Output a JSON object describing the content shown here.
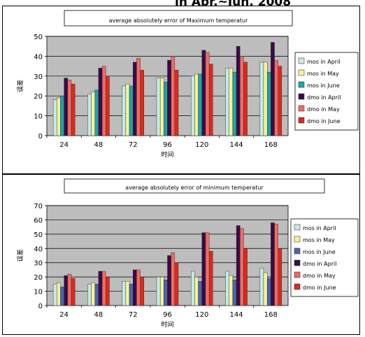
{
  "header": {
    "partial_caption": "in Apr.~Jun. 2008"
  },
  "legend_swatch_colors": [
    "#c7e8e4",
    "#f6f29a",
    "#1fa4a6",
    "#3a0a49",
    "#ef6b61",
    "#dc2a1c"
  ],
  "legend_swatch_colors_bottom": [
    "#c7e8e4",
    "#f6f29a",
    "#4b65ad",
    "#3a0a49",
    "#ef6b61",
    "#dc2a1c"
  ],
  "chart_data": [
    {
      "type": "bar",
      "title": "average absolutely error of Maximum temperatur",
      "xlabel": "时间",
      "ylabel": "误差",
      "ylim": [
        0,
        50
      ],
      "yticks": [
        "0",
        "10",
        "20",
        "30",
        "40",
        "50"
      ],
      "categories": [
        "24",
        "48",
        "72",
        "96",
        "120",
        "144",
        "168"
      ],
      "plot_background": "#bdbdbd",
      "grid": true,
      "legend_position": "right",
      "series": [
        {
          "name": "mos in April",
          "values": [
            18,
            21,
            25,
            29,
            30,
            34,
            37
          ]
        },
        {
          "name": "mos in May",
          "values": [
            19,
            22,
            26,
            29,
            31,
            34,
            37
          ]
        },
        {
          "name": "mos in June",
          "values": [
            20,
            23,
            25,
            27,
            31,
            32,
            32
          ]
        },
        {
          "name": "dmo in April",
          "values": [
            29,
            34,
            37,
            38,
            43,
            45,
            47
          ]
        },
        {
          "name": "dmo in May",
          "values": [
            28,
            35,
            39,
            40,
            42,
            40,
            38
          ]
        },
        {
          "name": "dmo in June",
          "values": [
            26,
            30,
            33,
            33,
            36,
            37,
            35
          ]
        }
      ]
    },
    {
      "type": "bar",
      "title": "average absolutely error of minimum temperatur",
      "xlabel": "时间",
      "ylabel": "误差",
      "ylim": [
        0,
        70
      ],
      "yticks": [
        "0",
        "10",
        "20",
        "30",
        "40",
        "50",
        "60",
        "70"
      ],
      "categories": [
        "24",
        "48",
        "72",
        "96",
        "120",
        "144",
        "168"
      ],
      "plot_background": "#bdbdbd",
      "grid": true,
      "legend_position": "right",
      "series": [
        {
          "name": "mos in April",
          "values": [
            15,
            15,
            17,
            20,
            24,
            24,
            26
          ]
        },
        {
          "name": "mos in May",
          "values": [
            16,
            16,
            17,
            20,
            20,
            21,
            23
          ]
        },
        {
          "name": "mos in June",
          "values": [
            13,
            15,
            15,
            18,
            17,
            18,
            19
          ]
        },
        {
          "name": "dmo in April",
          "values": [
            21,
            24,
            25,
            35,
            51,
            56,
            58
          ]
        },
        {
          "name": "dmo in May",
          "values": [
            22,
            24,
            25,
            37,
            51,
            54,
            57
          ]
        },
        {
          "name": "dmo in June",
          "values": [
            19,
            20,
            20,
            30,
            38,
            40,
            40
          ]
        }
      ]
    }
  ]
}
